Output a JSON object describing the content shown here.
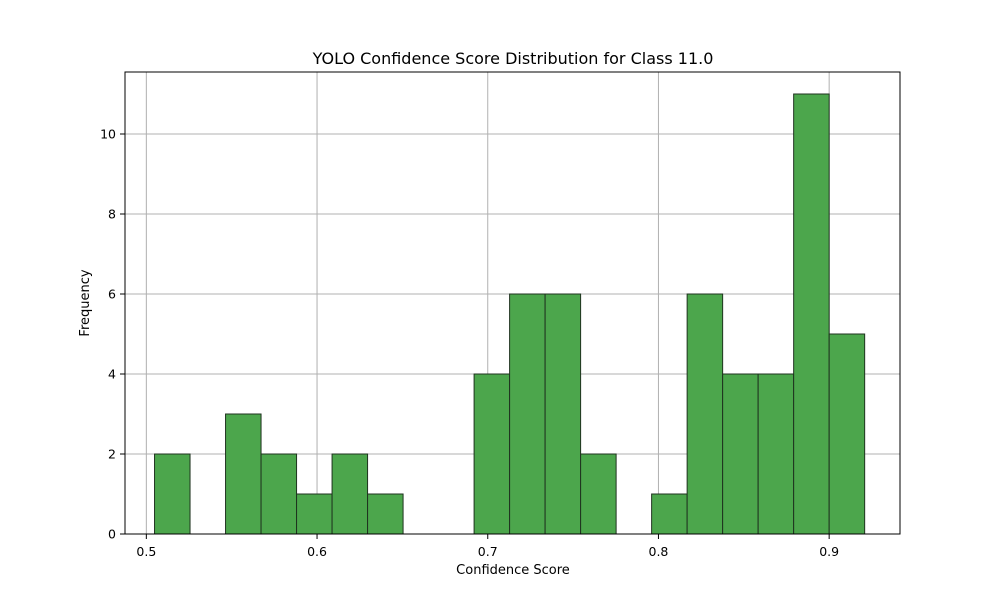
{
  "chart_data": {
    "type": "bar",
    "title": "YOLO Confidence Score Distribution for Class 11.0",
    "xlabel": "Confidence Score",
    "ylabel": "Frequency",
    "xlim": [
      0.4875,
      0.9415
    ],
    "ylim": [
      0,
      11.55
    ],
    "xticks": [
      0.5,
      0.6,
      0.7,
      0.8,
      0.9
    ],
    "xtick_labels": [
      "0.5",
      "0.6",
      "0.7",
      "0.8",
      "0.9"
    ],
    "yticks": [
      0,
      2,
      4,
      6,
      8,
      10
    ],
    "ytick_labels": [
      "0",
      "2",
      "4",
      "6",
      "8",
      "10"
    ],
    "grid": true,
    "bar_color": "#4ca64c",
    "edge_color": "#1f331f",
    "bin_edges": [
      0.5048,
      0.5256,
      0.5464,
      0.5672,
      0.588,
      0.6088,
      0.6296,
      0.6504,
      0.6712,
      0.692,
      0.7128,
      0.7336,
      0.7544,
      0.7752,
      0.796,
      0.8168,
      0.8376,
      0.8584,
      0.8792,
      0.9,
      0.9208
    ],
    "counts": [
      2,
      0,
      3,
      2,
      1,
      2,
      1,
      0,
      0,
      4,
      6,
      6,
      2,
      0,
      1,
      6,
      4,
      4,
      11,
      5
    ]
  }
}
